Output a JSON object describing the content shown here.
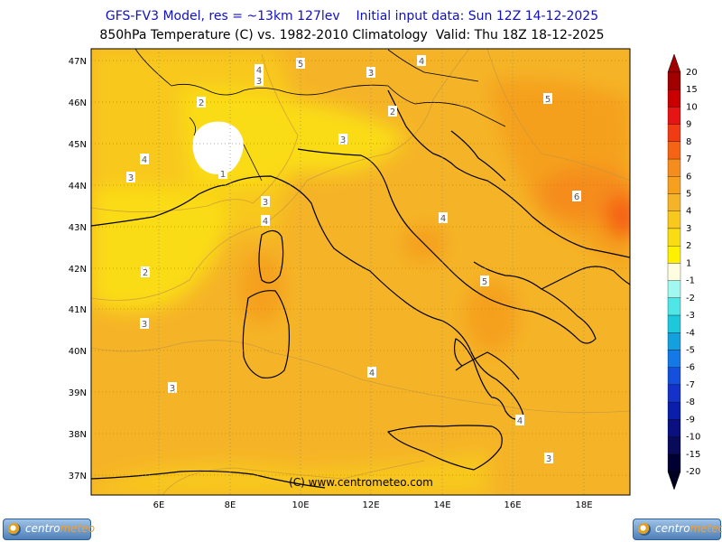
{
  "header": {
    "line1": "GFS-FV3 Model, res = ~13km 127lev    Initial input data: Sun 12Z 14-12-2025",
    "line2": "850hPa Temperature (C) vs. 1982-2010 Climatology  Valid: Thu 18Z 18-12-2025"
  },
  "map": {
    "lat_labels": [
      "47N",
      "46N",
      "45N",
      "44N",
      "43N",
      "42N",
      "41N",
      "40N",
      "39N",
      "38N",
      "37N"
    ],
    "lon_labels": [
      "6E",
      "8E",
      "10E",
      "12E",
      "14E",
      "16E",
      "18E"
    ],
    "copyright": "(C) www.centrometeo.com",
    "contour_labels": [
      {
        "t": "4"
      },
      {
        "t": "3"
      },
      {
        "t": "5"
      },
      {
        "t": "3"
      },
      {
        "t": "4"
      },
      {
        "t": "2"
      },
      {
        "t": "2"
      },
      {
        "t": "5"
      },
      {
        "t": "3"
      },
      {
        "t": "4"
      },
      {
        "t": "3"
      },
      {
        "t": "1"
      },
      {
        "t": "6"
      },
      {
        "t": "3"
      },
      {
        "t": "4"
      },
      {
        "t": "4"
      },
      {
        "t": "2"
      },
      {
        "t": "3"
      },
      {
        "t": "5"
      },
      {
        "t": "4"
      },
      {
        "t": "3"
      },
      {
        "t": "4"
      },
      {
        "t": "3"
      }
    ]
  },
  "colorbar": {
    "labels": [
      "20",
      "15",
      "10",
      "9",
      "8",
      "7",
      "6",
      "5",
      "4",
      "3",
      "2",
      "1",
      "-1",
      "-2",
      "-3",
      "-4",
      "-5",
      "-6",
      "-7",
      "-8",
      "-9",
      "-10",
      "-15",
      "-20"
    ],
    "colors": [
      "#a00000",
      "#c80000",
      "#e61414",
      "#f03c14",
      "#f56414",
      "#f58c1e",
      "#f5a01e",
      "#f5b428",
      "#f8c81e",
      "#fadc14",
      "#fff000",
      "#fffde0",
      "#a0f8f0",
      "#50e6e6",
      "#1ec8dc",
      "#14a0dc",
      "#1478e6",
      "#1450dc",
      "#1432c8",
      "#0a1eaa",
      "#0a1080",
      "#0a0a5a",
      "#000032"
    ]
  },
  "logos": {
    "text_a": "centro",
    "text_b": "meteo"
  }
}
